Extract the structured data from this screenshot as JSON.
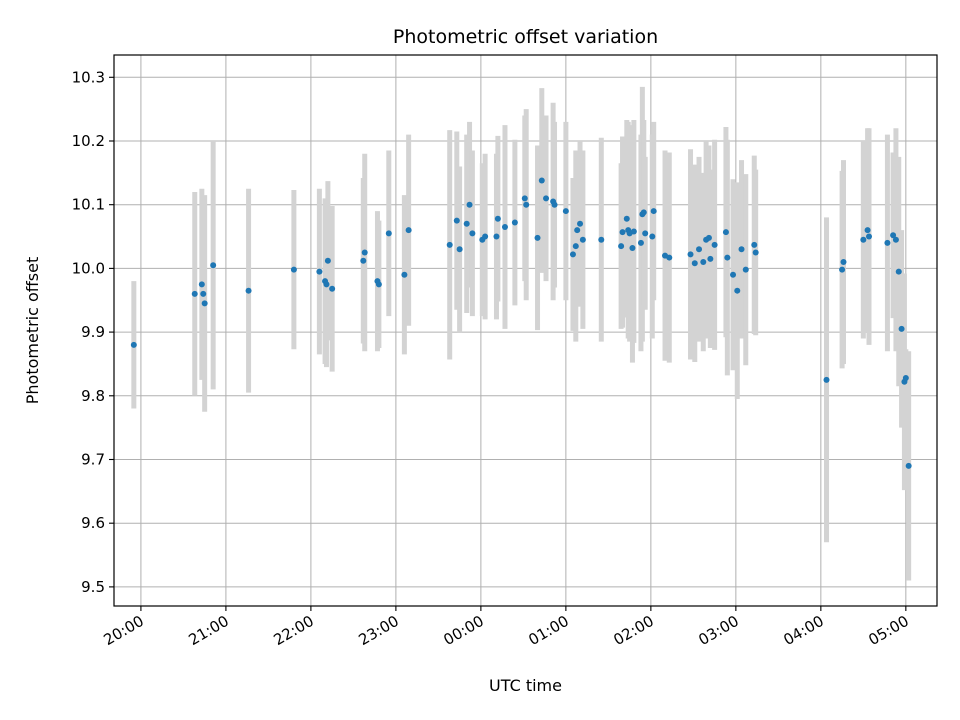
{
  "chart_data": {
    "type": "scatter",
    "title": "Photometric offset variation",
    "xlabel": "UTC time",
    "ylabel": "Photometric offset",
    "xlim": [
      "19:41",
      "05:22"
    ],
    "ylim": [
      9.47,
      10.335
    ],
    "x_unit": "UTC time (HH:MM, night spanning midnight)",
    "x_ticks": [
      "20:00",
      "21:00",
      "22:00",
      "23:00",
      "00:00",
      "01:00",
      "02:00",
      "03:00",
      "04:00",
      "05:00"
    ],
    "y_ticks": [
      "9.5",
      "9.6",
      "9.7",
      "9.8",
      "9.9",
      "10.0",
      "10.1",
      "10.2",
      "10.3"
    ],
    "grid": true,
    "colors": {
      "point": "#1f77b4",
      "errorbar": "#d3d3d3",
      "grid": "#b0b0b0"
    },
    "series": [
      {
        "points": [
          {
            "x": "19:55",
            "y": 9.88,
            "err": 0.1
          },
          {
            "x": "20:38",
            "y": 9.96,
            "err": 0.16
          },
          {
            "x": "20:43",
            "y": 9.975,
            "err": 0.15
          },
          {
            "x": "20:44",
            "y": 9.96,
            "err": 0.13
          },
          {
            "x": "20:45",
            "y": 9.945,
            "err": 0.17
          },
          {
            "x": "20:51",
            "y": 10.005,
            "err": 0.195
          },
          {
            "x": "21:16",
            "y": 9.965,
            "err": 0.16
          },
          {
            "x": "21:48",
            "y": 9.998,
            "err": 0.125
          },
          {
            "x": "22:06",
            "y": 9.995,
            "err": 0.13
          },
          {
            "x": "22:10",
            "y": 9.98,
            "err": 0.13
          },
          {
            "x": "22:11",
            "y": 9.975,
            "err": 0.13
          },
          {
            "x": "22:12",
            "y": 10.012,
            "err": 0.125
          },
          {
            "x": "22:15",
            "y": 9.968,
            "err": 0.13
          },
          {
            "x": "22:37",
            "y": 10.012,
            "err": 0.13
          },
          {
            "x": "22:38",
            "y": 10.025,
            "err": 0.155
          },
          {
            "x": "22:47",
            "y": 9.98,
            "err": 0.11
          },
          {
            "x": "22:48",
            "y": 9.975,
            "err": 0.1
          },
          {
            "x": "22:55",
            "y": 10.055,
            "err": 0.13
          },
          {
            "x": "23:06",
            "y": 9.99,
            "err": 0.125
          },
          {
            "x": "23:09",
            "y": 10.06,
            "err": 0.15
          },
          {
            "x": "23:38",
            "y": 10.037,
            "err": 0.18
          },
          {
            "x": "23:43",
            "y": 10.075,
            "err": 0.14
          },
          {
            "x": "23:45",
            "y": 10.03,
            "err": 0.13
          },
          {
            "x": "23:50",
            "y": 10.07,
            "err": 0.14
          },
          {
            "x": "23:52",
            "y": 10.1,
            "err": 0.13
          },
          {
            "x": "23:54",
            "y": 10.055,
            "err": 0.13
          },
          {
            "x": "00:01",
            "y": 10.045,
            "err": 0.12
          },
          {
            "x": "00:03",
            "y": 10.05,
            "err": 0.13
          },
          {
            "x": "00:11",
            "y": 10.05,
            "err": 0.13
          },
          {
            "x": "00:12",
            "y": 10.078,
            "err": 0.13
          },
          {
            "x": "00:17",
            "y": 10.065,
            "err": 0.16
          },
          {
            "x": "00:24",
            "y": 10.072,
            "err": 0.13
          },
          {
            "x": "00:31",
            "y": 10.11,
            "err": 0.13
          },
          {
            "x": "00:32",
            "y": 10.1,
            "err": 0.15
          },
          {
            "x": "00:40",
            "y": 10.048,
            "err": 0.145
          },
          {
            "x": "00:43",
            "y": 10.138,
            "err": 0.145
          },
          {
            "x": "00:46",
            "y": 10.11,
            "err": 0.13
          },
          {
            "x": "00:51",
            "y": 10.105,
            "err": 0.155
          },
          {
            "x": "00:52",
            "y": 10.1,
            "err": 0.13
          },
          {
            "x": "01:00",
            "y": 10.09,
            "err": 0.14
          },
          {
            "x": "01:05",
            "y": 10.022,
            "err": 0.12
          },
          {
            "x": "01:07",
            "y": 10.035,
            "err": 0.15
          },
          {
            "x": "01:08",
            "y": 10.06,
            "err": 0.12
          },
          {
            "x": "01:10",
            "y": 10.07,
            "err": 0.13
          },
          {
            "x": "01:12",
            "y": 10.045,
            "err": 0.14
          },
          {
            "x": "01:25",
            "y": 10.045,
            "err": 0.16
          },
          {
            "x": "01:39",
            "y": 10.035,
            "err": 0.13
          },
          {
            "x": "01:40",
            "y": 10.057,
            "err": 0.15
          },
          {
            "x": "01:43",
            "y": 10.078,
            "err": 0.155
          },
          {
            "x": "01:44",
            "y": 10.06,
            "err": 0.17
          },
          {
            "x": "01:45",
            "y": 10.055,
            "err": 0.17
          },
          {
            "x": "01:47",
            "y": 10.032,
            "err": 0.18
          },
          {
            "x": "01:48",
            "y": 10.058,
            "err": 0.175
          },
          {
            "x": "01:53",
            "y": 10.04,
            "err": 0.17
          },
          {
            "x": "01:54",
            "y": 10.085,
            "err": 0.2
          },
          {
            "x": "01:55",
            "y": 10.088,
            "err": 0.145
          },
          {
            "x": "01:56",
            "y": 10.055,
            "err": 0.12
          },
          {
            "x": "02:01",
            "y": 10.05,
            "err": 0.16
          },
          {
            "x": "02:02",
            "y": 10.09,
            "err": 0.14
          },
          {
            "x": "02:10",
            "y": 10.02,
            "err": 0.165
          },
          {
            "x": "02:13",
            "y": 10.017,
            "err": 0.165
          },
          {
            "x": "02:28",
            "y": 10.022,
            "err": 0.165
          },
          {
            "x": "02:31",
            "y": 10.008,
            "err": 0.155
          },
          {
            "x": "02:34",
            "y": 10.03,
            "err": 0.145
          },
          {
            "x": "02:37",
            "y": 10.01,
            "err": 0.14
          },
          {
            "x": "02:39",
            "y": 10.045,
            "err": 0.155
          },
          {
            "x": "02:41",
            "y": 10.048,
            "err": 0.145
          },
          {
            "x": "02:42",
            "y": 10.015,
            "err": 0.14
          },
          {
            "x": "02:45",
            "y": 10.037,
            "err": 0.165
          },
          {
            "x": "02:53",
            "y": 10.057,
            "err": 0.165
          },
          {
            "x": "02:54",
            "y": 10.017,
            "err": 0.185
          },
          {
            "x": "02:58",
            "y": 9.99,
            "err": 0.15
          },
          {
            "x": "03:01",
            "y": 9.965,
            "err": 0.17
          },
          {
            "x": "03:04",
            "y": 10.03,
            "err": 0.14
          },
          {
            "x": "03:07",
            "y": 9.998,
            "err": 0.15
          },
          {
            "x": "03:13",
            "y": 10.037,
            "err": 0.14
          },
          {
            "x": "03:14",
            "y": 10.025,
            "err": 0.13
          },
          {
            "x": "04:04",
            "y": 9.825,
            "err": 0.255
          },
          {
            "x": "04:15",
            "y": 9.998,
            "err": 0.155
          },
          {
            "x": "04:16",
            "y": 10.01,
            "err": 0.16
          },
          {
            "x": "04:30",
            "y": 10.045,
            "err": 0.155
          },
          {
            "x": "04:33",
            "y": 10.06,
            "err": 0.16
          },
          {
            "x": "04:34",
            "y": 10.05,
            "err": 0.17
          },
          {
            "x": "04:47",
            "y": 10.04,
            "err": 0.17
          },
          {
            "x": "04:51",
            "y": 10.052,
            "err": 0.13
          },
          {
            "x": "04:53",
            "y": 10.045,
            "err": 0.175
          },
          {
            "x": "04:55",
            "y": 9.995,
            "err": 0.18
          },
          {
            "x": "04:57",
            "y": 9.905,
            "err": 0.155
          },
          {
            "x": "04:59",
            "y": 9.822,
            "err": 0.17
          },
          {
            "x": "05:00",
            "y": 9.828,
            "err": 0.045
          },
          {
            "x": "05:02",
            "y": 9.69,
            "err": 0.18
          }
        ]
      }
    ]
  }
}
